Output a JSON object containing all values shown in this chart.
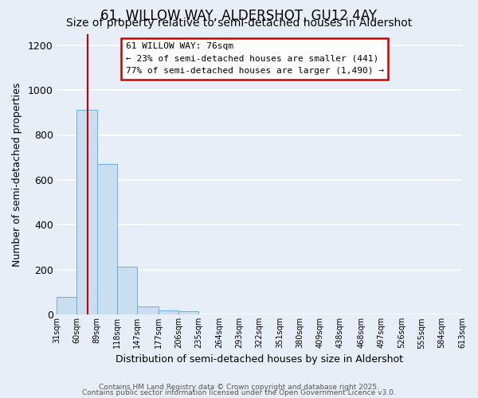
{
  "title": "61, WILLOW WAY, ALDERSHOT, GU12 4AY",
  "subtitle": "Size of property relative to semi-detached houses in Aldershot",
  "xlabel": "Distribution of semi-detached houses by size in Aldershot",
  "ylabel": "Number of semi-detached properties",
  "bar_lefts": [
    31,
    60,
    89,
    118,
    147,
    177,
    206,
    235,
    264,
    293,
    322,
    351,
    380,
    409,
    438,
    468,
    497,
    526,
    555,
    584
  ],
  "bar_widths": [
    29,
    29,
    29,
    29,
    30,
    29,
    29,
    29,
    29,
    29,
    29,
    29,
    29,
    29,
    30,
    29,
    29,
    29,
    29,
    29
  ],
  "bar_heights": [
    80,
    910,
    670,
    215,
    35,
    20,
    15,
    0,
    0,
    0,
    0,
    0,
    0,
    0,
    0,
    0,
    0,
    0,
    0,
    0
  ],
  "bar_color": "#c9dff0",
  "bar_edge_color": "#6aaed6",
  "property_line_x": 76,
  "property_line_color": "#cc0000",
  "annotation_title": "61 WILLOW WAY: 76sqm",
  "annotation_line1": "← 23% of semi-detached houses are smaller (441)",
  "annotation_line2": "77% of semi-detached houses are larger (1,490) →",
  "annotation_box_color": "#ffffff",
  "annotation_box_edge_color": "#cc0000",
  "ylim": [
    0,
    1250
  ],
  "xlim": [
    31,
    613
  ],
  "tick_labels": [
    "31sqm",
    "60sqm",
    "89sqm",
    "118sqm",
    "147sqm",
    "177sqm",
    "206sqm",
    "235sqm",
    "264sqm",
    "293sqm",
    "322sqm",
    "351sqm",
    "380sqm",
    "409sqm",
    "438sqm",
    "468sqm",
    "497sqm",
    "526sqm",
    "555sqm",
    "584sqm",
    "613sqm"
  ],
  "tick_positions": [
    31,
    60,
    89,
    118,
    147,
    177,
    206,
    235,
    264,
    293,
    322,
    351,
    380,
    409,
    438,
    468,
    497,
    526,
    555,
    584,
    613
  ],
  "yticks": [
    0,
    200,
    400,
    600,
    800,
    1000,
    1200
  ],
  "footer_line1": "Contains HM Land Registry data © Crown copyright and database right 2025.",
  "footer_line2": "Contains public sector information licensed under the Open Government Licence v3.0.",
  "background_color": "#e8eef8",
  "plot_background_color": "#e8eef8",
  "grid_color": "#ffffff",
  "title_fontsize": 12,
  "subtitle_fontsize": 10,
  "axis_label_fontsize": 9,
  "tick_fontsize": 7,
  "footer_fontsize": 6.5,
  "ytick_fontsize": 9
}
